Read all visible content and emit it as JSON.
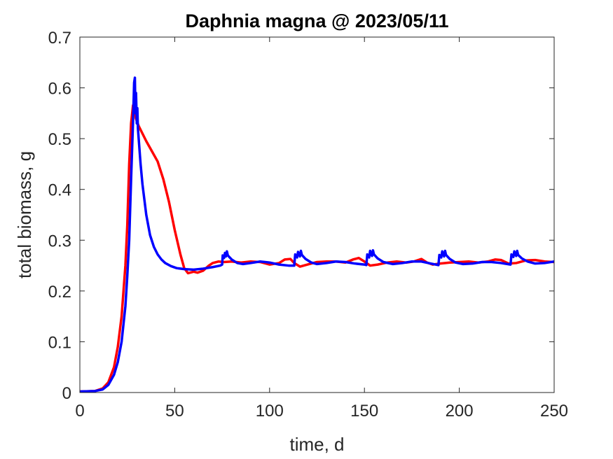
{
  "chart_data": {
    "type": "line",
    "title": "Daphnia magna @ 2023/05/11",
    "xlabel": "time, d",
    "ylabel": "total biomass, g",
    "xlim": [
      0,
      250
    ],
    "ylim": [
      0,
      0.7
    ],
    "xticks": [
      0,
      50,
      100,
      150,
      200,
      250
    ],
    "yticks": [
      0,
      0.1,
      0.2,
      0.3,
      0.4,
      0.5,
      0.6,
      0.7
    ],
    "xtick_labels": [
      "0",
      "50",
      "100",
      "150",
      "200",
      "250"
    ],
    "ytick_labels": [
      "0",
      "0.1",
      "0.2",
      "0.3",
      "0.4",
      "0.5",
      "0.6",
      "0.7"
    ],
    "grid": false,
    "series": [
      {
        "name": "red series",
        "color": "#ff0000",
        "points": [
          [
            0,
            0.002
          ],
          [
            8,
            0.003
          ],
          [
            12,
            0.008
          ],
          [
            15,
            0.02
          ],
          [
            18,
            0.05
          ],
          [
            20,
            0.09
          ],
          [
            22,
            0.15
          ],
          [
            24,
            0.25
          ],
          [
            25,
            0.33
          ],
          [
            26,
            0.45
          ],
          [
            27,
            0.53
          ],
          [
            28,
            0.565
          ],
          [
            28.5,
            0.57
          ],
          [
            29.5,
            0.54
          ],
          [
            31,
            0.525
          ],
          [
            33,
            0.51
          ],
          [
            35,
            0.495
          ],
          [
            38,
            0.475
          ],
          [
            41,
            0.455
          ],
          [
            44,
            0.42
          ],
          [
            47,
            0.375
          ],
          [
            50,
            0.32
          ],
          [
            53,
            0.272
          ],
          [
            55,
            0.245
          ],
          [
            57,
            0.235
          ],
          [
            60,
            0.238
          ],
          [
            62,
            0.236
          ],
          [
            65,
            0.24
          ],
          [
            68,
            0.25
          ],
          [
            70,
            0.255
          ],
          [
            73,
            0.258
          ],
          [
            76,
            0.257
          ],
          [
            80,
            0.258
          ],
          [
            85,
            0.256
          ],
          [
            90,
            0.258
          ],
          [
            95,
            0.257
          ],
          [
            100,
            0.252
          ],
          [
            105,
            0.255
          ],
          [
            108,
            0.262
          ],
          [
            111,
            0.263
          ],
          [
            113,
            0.255
          ],
          [
            116,
            0.248
          ],
          [
            120,
            0.252
          ],
          [
            125,
            0.257
          ],
          [
            130,
            0.258
          ],
          [
            135,
            0.258
          ],
          [
            140,
            0.256
          ],
          [
            144,
            0.262
          ],
          [
            147,
            0.265
          ],
          [
            150,
            0.258
          ],
          [
            153,
            0.25
          ],
          [
            157,
            0.252
          ],
          [
            162,
            0.256
          ],
          [
            167,
            0.258
          ],
          [
            172,
            0.256
          ],
          [
            176,
            0.258
          ],
          [
            180,
            0.263
          ],
          [
            183,
            0.256
          ],
          [
            186,
            0.252
          ],
          [
            190,
            0.254
          ],
          [
            195,
            0.256
          ],
          [
            200,
            0.257
          ],
          [
            205,
            0.258
          ],
          [
            210,
            0.256
          ],
          [
            215,
            0.258
          ],
          [
            219,
            0.262
          ],
          [
            222,
            0.261
          ],
          [
            226,
            0.254
          ],
          [
            230,
            0.255
          ],
          [
            235,
            0.26
          ],
          [
            240,
            0.261
          ],
          [
            245,
            0.258
          ],
          [
            250,
            0.257
          ]
        ]
      },
      {
        "name": "blue series",
        "color": "#0000ff",
        "points": [
          [
            0,
            0.002
          ],
          [
            8,
            0.003
          ],
          [
            12,
            0.006
          ],
          [
            15,
            0.015
          ],
          [
            18,
            0.035
          ],
          [
            20,
            0.06
          ],
          [
            22,
            0.1
          ],
          [
            24,
            0.17
          ],
          [
            25,
            0.23
          ],
          [
            26,
            0.3
          ],
          [
            27,
            0.42
          ],
          [
            28,
            0.53
          ],
          [
            28.6,
            0.61
          ],
          [
            29,
            0.62
          ],
          [
            29.3,
            0.55
          ],
          [
            29.6,
            0.59
          ],
          [
            30,
            0.53
          ],
          [
            30.3,
            0.56
          ],
          [
            30.6,
            0.52
          ],
          [
            31,
            0.5
          ],
          [
            32,
            0.45
          ],
          [
            33,
            0.41
          ],
          [
            35,
            0.35
          ],
          [
            37,
            0.31
          ],
          [
            39,
            0.287
          ],
          [
            41,
            0.272
          ],
          [
            43,
            0.262
          ],
          [
            45,
            0.255
          ],
          [
            48,
            0.249
          ],
          [
            51,
            0.245
          ],
          [
            55,
            0.243
          ],
          [
            60,
            0.242
          ],
          [
            65,
            0.244
          ],
          [
            70,
            0.247
          ],
          [
            74,
            0.25
          ],
          [
            75,
            0.252
          ],
          [
            75.3,
            0.27
          ],
          [
            76,
            0.265
          ],
          [
            76.5,
            0.275
          ],
          [
            77,
            0.268
          ],
          [
            77.5,
            0.278
          ],
          [
            78,
            0.27
          ],
          [
            80,
            0.262
          ],
          [
            83,
            0.255
          ],
          [
            86,
            0.253
          ],
          [
            90,
            0.255
          ],
          [
            95,
            0.258
          ],
          [
            100,
            0.256
          ],
          [
            105,
            0.252
          ],
          [
            110,
            0.25
          ],
          [
            113,
            0.25
          ],
          [
            113.5,
            0.272
          ],
          [
            114.5,
            0.266
          ],
          [
            115,
            0.277
          ],
          [
            116,
            0.268
          ],
          [
            116.5,
            0.279
          ],
          [
            117,
            0.271
          ],
          [
            119,
            0.263
          ],
          [
            122,
            0.256
          ],
          [
            125,
            0.253
          ],
          [
            130,
            0.255
          ],
          [
            135,
            0.258
          ],
          [
            140,
            0.257
          ],
          [
            145,
            0.254
          ],
          [
            150,
            0.252
          ],
          [
            151,
            0.251
          ],
          [
            151.5,
            0.272
          ],
          [
            152.5,
            0.266
          ],
          [
            153,
            0.279
          ],
          [
            154,
            0.269
          ],
          [
            154.5,
            0.28
          ],
          [
            155,
            0.272
          ],
          [
            157,
            0.264
          ],
          [
            160,
            0.257
          ],
          [
            165,
            0.253
          ],
          [
            170,
            0.255
          ],
          [
            175,
            0.258
          ],
          [
            180,
            0.258
          ],
          [
            185,
            0.254
          ],
          [
            189,
            0.251
          ],
          [
            189.5,
            0.271
          ],
          [
            190.5,
            0.266
          ],
          [
            191,
            0.278
          ],
          [
            192,
            0.268
          ],
          [
            192.5,
            0.279
          ],
          [
            193,
            0.271
          ],
          [
            195,
            0.263
          ],
          [
            198,
            0.256
          ],
          [
            202,
            0.253
          ],
          [
            207,
            0.254
          ],
          [
            212,
            0.257
          ],
          [
            217,
            0.257
          ],
          [
            222,
            0.255
          ],
          [
            227,
            0.252
          ],
          [
            227.5,
            0.272
          ],
          [
            228.5,
            0.267
          ],
          [
            229,
            0.278
          ],
          [
            230,
            0.269
          ],
          [
            230.5,
            0.279
          ],
          [
            231,
            0.271
          ],
          [
            233,
            0.264
          ],
          [
            236,
            0.258
          ],
          [
            240,
            0.254
          ],
          [
            245,
            0.255
          ],
          [
            250,
            0.258
          ]
        ]
      }
    ]
  }
}
